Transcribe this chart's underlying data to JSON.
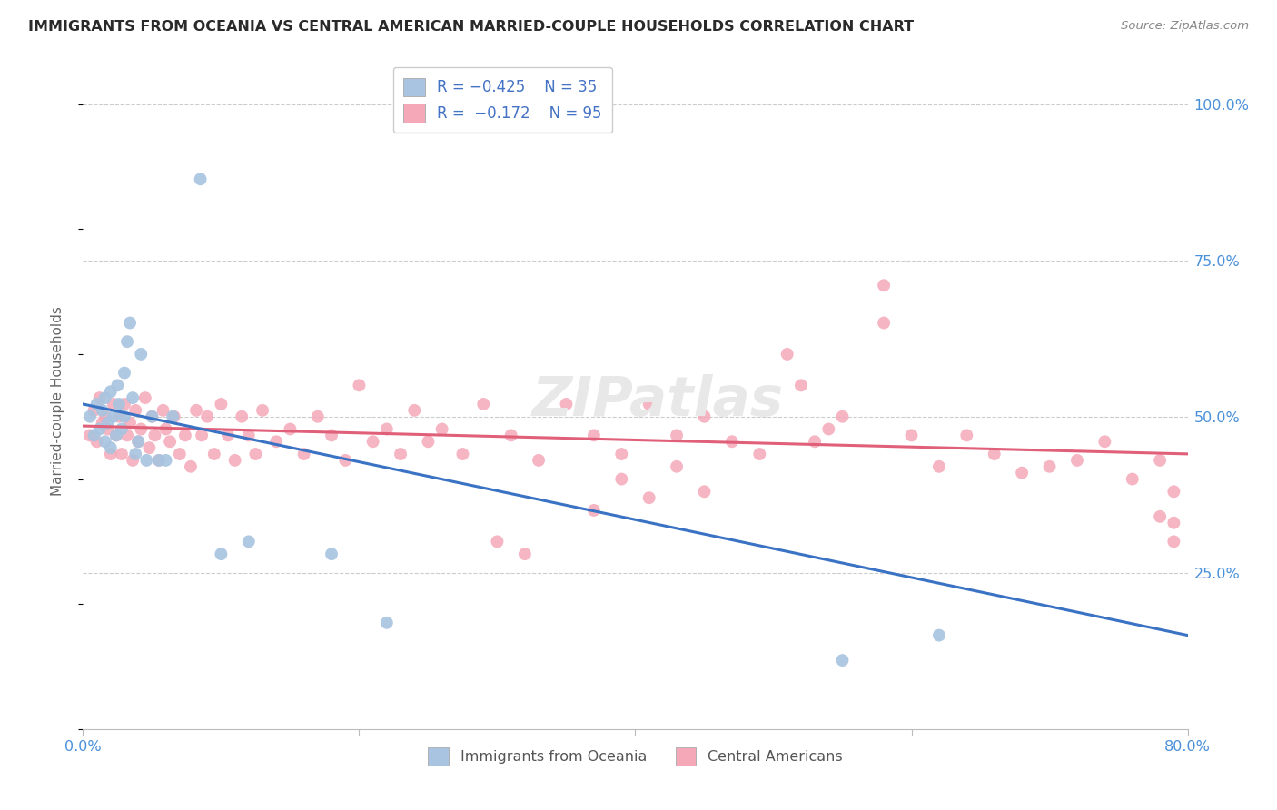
{
  "title": "IMMIGRANTS FROM OCEANIA VS CENTRAL AMERICAN MARRIED-COUPLE HOUSEHOLDS CORRELATION CHART",
  "source": "Source: ZipAtlas.com",
  "ylabel": "Married-couple Households",
  "xlim": [
    0.0,
    0.8
  ],
  "ylim": [
    0.0,
    1.05
  ],
  "ytick_positions": [
    0.0,
    0.25,
    0.5,
    0.75,
    1.0
  ],
  "ytick_labels_right": [
    "",
    "25.0%",
    "50.0%",
    "75.0%",
    "100.0%"
  ],
  "xtick_positions": [
    0.0,
    0.2,
    0.4,
    0.6,
    0.8
  ],
  "xtick_labels": [
    "0.0%",
    "",
    "",
    "",
    "80.0%"
  ],
  "blue_color": "#a8c4e0",
  "pink_color": "#f4a8b8",
  "blue_line_color": "#3a72c4",
  "pink_line_color": "#e0607a",
  "legend_text_color": "#4472c4",
  "watermark": "ZIPatlas",
  "legend1_label": "Immigrants from Oceania",
  "legend2_label": "Central Americans",
  "blue_points_x": [
    0.005,
    0.008,
    0.01,
    0.012,
    0.014,
    0.016,
    0.016,
    0.018,
    0.02,
    0.02,
    0.022,
    0.024,
    0.025,
    0.026,
    0.028,
    0.03,
    0.03,
    0.032,
    0.034,
    0.036,
    0.038,
    0.04,
    0.042,
    0.046,
    0.05,
    0.055,
    0.06,
    0.065,
    0.085,
    0.1,
    0.12,
    0.18,
    0.22,
    0.55,
    0.62
  ],
  "blue_points_y": [
    0.5,
    0.47,
    0.52,
    0.48,
    0.51,
    0.53,
    0.46,
    0.49,
    0.54,
    0.45,
    0.5,
    0.47,
    0.55,
    0.52,
    0.48,
    0.57,
    0.5,
    0.62,
    0.65,
    0.53,
    0.44,
    0.46,
    0.6,
    0.43,
    0.5,
    0.43,
    0.43,
    0.5,
    0.88,
    0.28,
    0.3,
    0.28,
    0.17,
    0.11,
    0.15
  ],
  "pink_points_x": [
    0.005,
    0.008,
    0.01,
    0.012,
    0.014,
    0.016,
    0.018,
    0.02,
    0.022,
    0.024,
    0.026,
    0.028,
    0.03,
    0.032,
    0.034,
    0.036,
    0.038,
    0.04,
    0.042,
    0.045,
    0.048,
    0.05,
    0.052,
    0.055,
    0.058,
    0.06,
    0.063,
    0.066,
    0.07,
    0.074,
    0.078,
    0.082,
    0.086,
    0.09,
    0.095,
    0.1,
    0.105,
    0.11,
    0.115,
    0.12,
    0.125,
    0.13,
    0.14,
    0.15,
    0.16,
    0.17,
    0.18,
    0.19,
    0.2,
    0.21,
    0.22,
    0.23,
    0.24,
    0.25,
    0.26,
    0.275,
    0.29,
    0.31,
    0.33,
    0.35,
    0.37,
    0.39,
    0.41,
    0.43,
    0.45,
    0.47,
    0.49,
    0.51,
    0.53,
    0.55,
    0.37,
    0.39,
    0.41,
    0.43,
    0.45,
    0.3,
    0.32,
    0.52,
    0.54,
    0.58,
    0.62,
    0.66,
    0.7,
    0.74,
    0.78,
    0.58,
    0.6,
    0.64,
    0.68,
    0.72,
    0.76,
    0.78,
    0.79,
    0.79,
    0.79
  ],
  "pink_points_y": [
    0.47,
    0.51,
    0.46,
    0.53,
    0.49,
    0.5,
    0.48,
    0.44,
    0.52,
    0.47,
    0.5,
    0.44,
    0.52,
    0.47,
    0.49,
    0.43,
    0.51,
    0.46,
    0.48,
    0.53,
    0.45,
    0.5,
    0.47,
    0.43,
    0.51,
    0.48,
    0.46,
    0.5,
    0.44,
    0.47,
    0.42,
    0.51,
    0.47,
    0.5,
    0.44,
    0.52,
    0.47,
    0.43,
    0.5,
    0.47,
    0.44,
    0.51,
    0.46,
    0.48,
    0.44,
    0.5,
    0.47,
    0.43,
    0.55,
    0.46,
    0.48,
    0.44,
    0.51,
    0.46,
    0.48,
    0.44,
    0.52,
    0.47,
    0.43,
    0.52,
    0.47,
    0.44,
    0.52,
    0.47,
    0.5,
    0.46,
    0.44,
    0.6,
    0.46,
    0.5,
    0.35,
    0.4,
    0.37,
    0.42,
    0.38,
    0.3,
    0.28,
    0.55,
    0.48,
    0.65,
    0.42,
    0.44,
    0.42,
    0.46,
    0.34,
    0.71,
    0.47,
    0.47,
    0.41,
    0.43,
    0.4,
    0.43,
    0.38,
    0.3,
    0.33
  ]
}
